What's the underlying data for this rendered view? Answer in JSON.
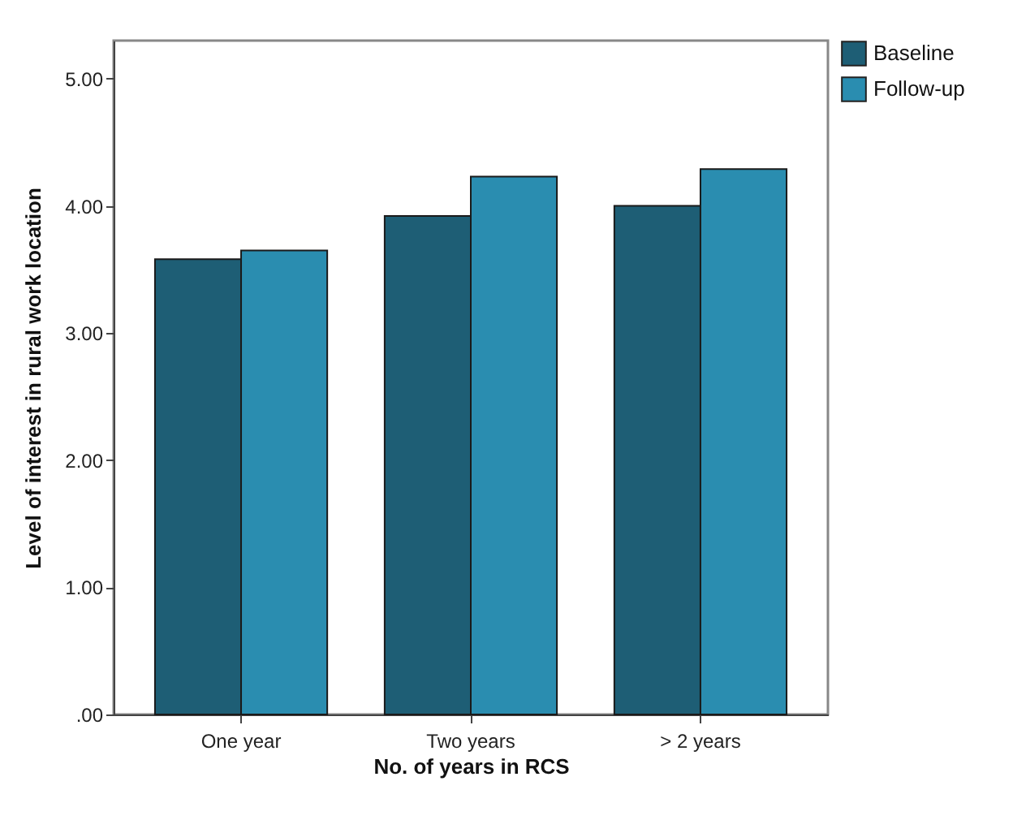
{
  "chart_data": {
    "type": "bar",
    "xlabel": "No. of years in RCS",
    "ylabel": "Level of interest in rural work location",
    "categories": [
      "One year",
      "Two years",
      "> 2 years"
    ],
    "series": [
      {
        "name": "Baseline",
        "color": "#1e5e75",
        "values": [
          3.58,
          3.92,
          4.0
        ]
      },
      {
        "name": "Follow-up",
        "color": "#2a8db0",
        "values": [
          3.65,
          4.23,
          4.29
        ]
      }
    ],
    "ylim": [
      0,
      5.3
    ],
    "yticks": [
      {
        "value": 0,
        "label": ".00"
      },
      {
        "value": 1,
        "label": "1.00"
      },
      {
        "value": 2,
        "label": "2.00"
      },
      {
        "value": 3,
        "label": "3.00"
      },
      {
        "value": 4,
        "label": "4.00"
      },
      {
        "value": 5,
        "label": "5.00"
      }
    ],
    "grid": false,
    "legend": "top right"
  }
}
